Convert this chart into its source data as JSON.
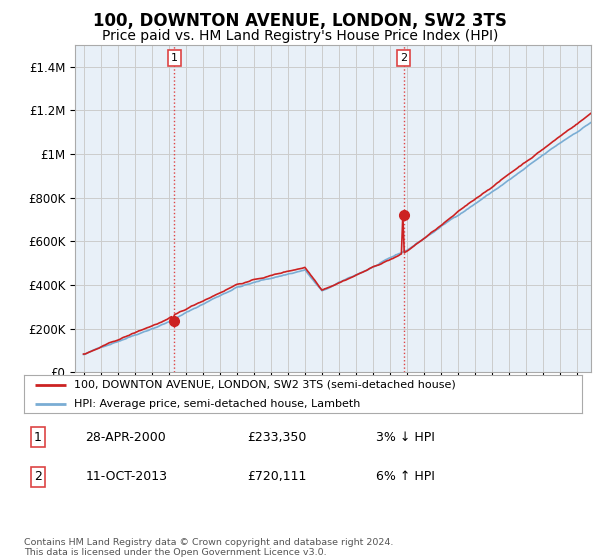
{
  "title": "100, DOWNTON AVENUE, LONDON, SW2 3TS",
  "subtitle": "Price paid vs. HM Land Registry's House Price Index (HPI)",
  "title_fontsize": 12,
  "subtitle_fontsize": 10,
  "ylim": [
    0,
    1500000
  ],
  "yticks": [
    0,
    200000,
    400000,
    600000,
    800000,
    1000000,
    1200000,
    1400000
  ],
  "ytick_labels": [
    "£0",
    "£200K",
    "£400K",
    "£600K",
    "£800K",
    "£1M",
    "£1.2M",
    "£1.4M"
  ],
  "background_color": "#ffffff",
  "chart_bg_color": "#e8f0f8",
  "grid_color": "#cccccc",
  "price_paid_color": "#cc2222",
  "hpi_color": "#7aadd4",
  "sale1_x": 2000.32,
  "sale1_price": 233350,
  "sale2_x": 2013.79,
  "sale2_price": 720111,
  "vline_color": "#dd4444",
  "legend_entry1": "100, DOWNTON AVENUE, LONDON, SW2 3TS (semi-detached house)",
  "legend_entry2": "HPI: Average price, semi-detached house, Lambeth",
  "table_row1": [
    "1",
    "28-APR-2000",
    "£233,350",
    "3% ↓ HPI"
  ],
  "table_row2": [
    "2",
    "11-OCT-2013",
    "£720,111",
    "6% ↑ HPI"
  ],
  "footnote": "Contains HM Land Registry data © Crown copyright and database right 2024.\nThis data is licensed under the Open Government Licence v3.0.",
  "xmin": 1994.5,
  "xmax": 2024.8
}
